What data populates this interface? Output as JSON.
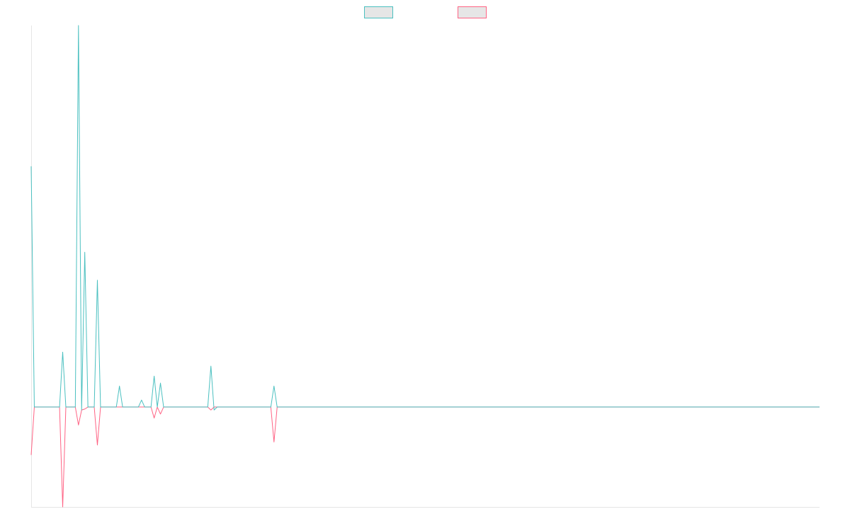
{
  "chart_data": {
    "type": "line",
    "x": [
      0,
      1,
      9,
      10,
      11,
      14,
      15,
      16,
      17,
      18,
      20,
      21,
      22,
      27,
      28,
      29,
      34,
      35,
      36,
      38,
      39,
      40,
      41,
      42,
      56,
      57,
      58,
      59,
      76,
      77,
      78,
      250
    ],
    "series": [
      {
        "color": "#4bc0c0",
        "values": [
          2.41,
          0,
          0,
          0.55,
          0,
          0,
          3.82,
          -0.03,
          1.55,
          0,
          0,
          1.27,
          0,
          0,
          0.21,
          0,
          0,
          0.07,
          0,
          0,
          0.31,
          0,
          0.24,
          0,
          0,
          0.41,
          -0.03,
          0,
          0,
          0.21,
          0,
          0
        ]
      },
      {
        "color": "#ff6384",
        "values": [
          -0.48,
          0,
          0,
          -1,
          0,
          0,
          -0.18,
          -0.03,
          -0.02,
          0,
          0,
          -0.38,
          0,
          0,
          0,
          0,
          0,
          0,
          0,
          0,
          -0.11,
          0,
          -0.07,
          0,
          0,
          -0.03,
          0,
          0,
          0,
          -0.35,
          0,
          0
        ]
      }
    ],
    "xlim": [
      0,
      250
    ],
    "ylim": [
      -1,
      3.82
    ],
    "grid": false,
    "legend": "top"
  }
}
